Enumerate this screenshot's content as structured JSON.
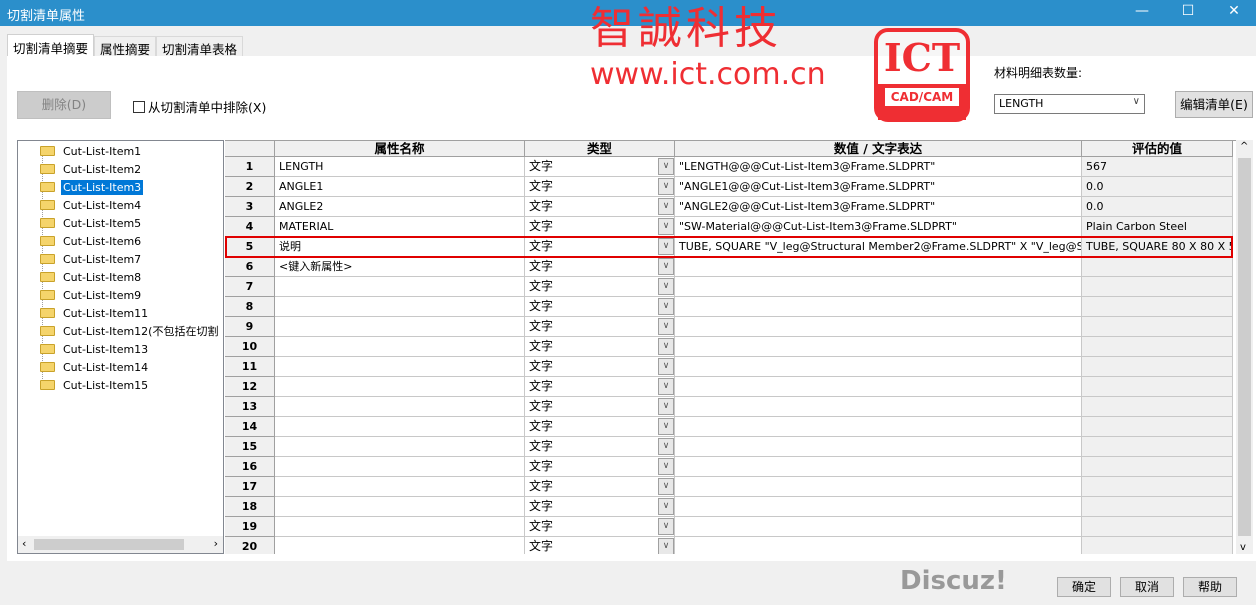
{
  "window": {
    "title": "切割清单属性",
    "minimize": "—",
    "maximize": "☐",
    "close": "✕"
  },
  "tabs": [
    {
      "label": "切割清单摘要",
      "active": true
    },
    {
      "label": "属性摘要"
    },
    {
      "label": "切割清单表格"
    }
  ],
  "toolbar": {
    "delete_label": "删除(D)",
    "exclude_label": "从切割清单中排除(X)",
    "exclude_checked": false,
    "qty_label": "材料明细表数量:",
    "qty_value": "LENGTH",
    "edit_list_label": "编辑清单(E)"
  },
  "tree": {
    "items": [
      "Cut-List-Item1",
      "Cut-List-Item2",
      "Cut-List-Item3",
      "Cut-List-Item4",
      "Cut-List-Item5",
      "Cut-List-Item6",
      "Cut-List-Item7",
      "Cut-List-Item8",
      "Cut-List-Item9",
      "Cut-List-Item11",
      "Cut-List-Item12(不包括在切割",
      "Cut-List-Item13",
      "Cut-List-Item14",
      "Cut-List-Item15"
    ],
    "selected": "Cut-List-Item3"
  },
  "grid": {
    "headers": [
      "",
      "属性名称",
      "类型",
      "数值 / 文字表达",
      "评估的值"
    ],
    "rows": [
      [
        "1",
        "LENGTH",
        "文字",
        "\"LENGTH@@@Cut-List-Item3@Frame.SLDPRT\"",
        "567"
      ],
      [
        "2",
        "ANGLE1",
        "文字",
        "\"ANGLE1@@@Cut-List-Item3@Frame.SLDPRT\"",
        "0.0"
      ],
      [
        "3",
        "ANGLE2",
        "文字",
        "\"ANGLE2@@@Cut-List-Item3@Frame.SLDPRT\"",
        "0.0"
      ],
      [
        "4",
        "MATERIAL",
        "文字",
        "\"SW-Material@@@Cut-List-Item3@Frame.SLDPRT\"",
        "Plain Carbon Steel"
      ],
      [
        "5",
        "说明",
        "文字",
        "TUBE, SQUARE \"V_leg@Structural Member2@Frame.SLDPRT\" X \"V_leg@Stru",
        "TUBE, SQUARE 80 X 80 X 5"
      ],
      [
        "6",
        "<键入新属性>",
        "文字",
        "",
        ""
      ],
      [
        "7",
        "",
        "文字",
        "",
        ""
      ],
      [
        "8",
        "",
        "文字",
        "",
        ""
      ],
      [
        "9",
        "",
        "文字",
        "",
        ""
      ],
      [
        "10",
        "",
        "文字",
        "",
        ""
      ],
      [
        "11",
        "",
        "文字",
        "",
        ""
      ],
      [
        "12",
        "",
        "文字",
        "",
        ""
      ],
      [
        "13",
        "",
        "文字",
        "",
        ""
      ],
      [
        "14",
        "",
        "文字",
        "",
        ""
      ],
      [
        "15",
        "",
        "文字",
        "",
        ""
      ],
      [
        "16",
        "",
        "文字",
        "",
        ""
      ],
      [
        "17",
        "",
        "文字",
        "",
        ""
      ],
      [
        "18",
        "",
        "文字",
        "",
        ""
      ],
      [
        "19",
        "",
        "文字",
        "",
        ""
      ],
      [
        "20",
        "",
        "文字",
        "",
        ""
      ]
    ],
    "highlighted_row": "5"
  },
  "footer": {
    "ok": "确定",
    "cancel": "取消",
    "help": "帮助"
  },
  "watermarks": {
    "logo_text": "ICT",
    "logo_sub": "CAD/CAM",
    "brand": "智誠科技",
    "url": "www.ict.com.cn",
    "forum": "Discuz!"
  },
  "colors": {
    "titlebar": "#2b8fcb",
    "selection": "#0078d7",
    "highlight_border": "#e00000",
    "watermark": "#ef2e33"
  }
}
